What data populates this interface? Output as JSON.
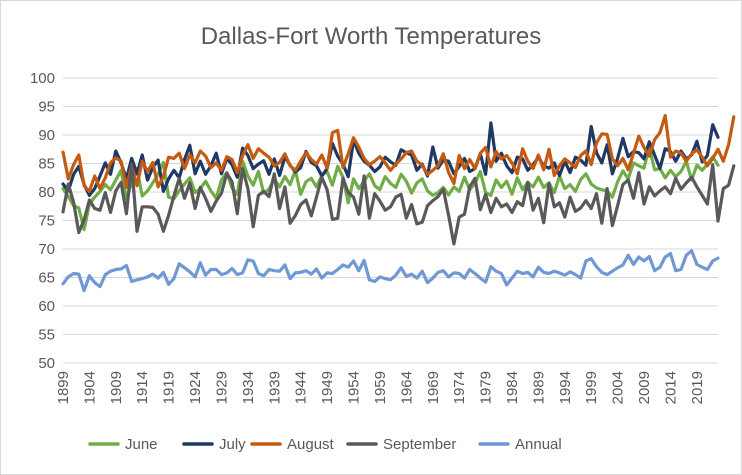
{
  "chart_data": {
    "type": "line",
    "title": "Dallas-Fort Worth Temperatures",
    "xlabel": "",
    "ylabel": "",
    "ylim": [
      50,
      100
    ],
    "yticks": [
      50,
      55,
      60,
      65,
      70,
      75,
      80,
      85,
      90,
      95,
      100
    ],
    "x_start": 1899,
    "x_end": 2023,
    "xtick_labels": [
      1899,
      1904,
      1909,
      1914,
      1919,
      1924,
      1929,
      1934,
      1939,
      1944,
      1949,
      1954,
      1959,
      1964,
      1969,
      1974,
      1979,
      1984,
      1989,
      1994,
      1999,
      2004,
      2009,
      2014,
      2019
    ],
    "grid": "horizontal",
    "legend": "bottom",
    "series": [
      {
        "name": "June",
        "color": "#70ad47",
        "values": [
          80.6,
          79.2,
          77.6,
          77.2,
          73.4,
          77.9,
          79.1,
          80.1,
          81.3,
          80.4,
          82.1,
          83.8,
          78.9,
          81.5,
          84.1,
          79.3,
          80.2,
          81.6,
          83.1,
          85.2,
          79.1,
          78.8,
          80.2,
          81.4,
          82.5,
          79.9,
          80.6,
          81.9,
          80.2,
          78.9,
          82.1,
          83.4,
          80.7,
          79.6,
          85.4,
          82.8,
          81.2,
          83.6,
          79.8,
          80.5,
          82.3,
          80.9,
          82.7,
          81.3,
          83.8,
          79.6,
          81.8,
          82.4,
          80.9,
          82.9,
          83.6,
          81.2,
          84.5,
          82.6,
          78.1,
          82.3,
          80.6,
          81.9,
          83.2,
          81.1,
          80.4,
          82.7,
          81.5,
          80.8,
          83.1,
          81.9,
          79.8,
          81.6,
          82.3,
          80.2,
          79.4,
          79.9,
          80.8,
          79.5,
          80.9,
          80.1,
          82.6,
          80.4,
          81.5,
          83.6,
          79.9,
          79.4,
          82.1,
          80.8,
          81.9,
          79.6,
          82.5,
          80.4,
          81.7,
          80.9,
          82.6,
          80.8,
          81.6,
          79.9,
          82.8,
          80.6,
          81.3,
          80.1,
          82.2,
          83.2,
          81.4,
          80.7,
          80.4,
          80.2,
          79.1,
          81.8,
          83.7,
          82.3,
          85.1,
          84.6,
          84.2,
          87.8,
          83.9,
          84.1,
          82.5,
          83.8,
          82.7,
          83.6,
          85.4,
          82.1,
          84.7,
          83.8,
          84.9,
          86.2,
          84.7
        ]
      },
      {
        "name": "July",
        "color": "#203864",
        "values": [
          81.4,
          80.2,
          83.1,
          84.5,
          81.3,
          79.4,
          80.6,
          82.8,
          85.1,
          83.1,
          87.2,
          85.1,
          82.3,
          85.9,
          83.2,
          86.5,
          82.1,
          84.3,
          85.6,
          80.1,
          82.3,
          83.8,
          82.5,
          85.7,
          88.2,
          83.2,
          85.4,
          83.1,
          84.6,
          86.8,
          83.2,
          85.9,
          84.8,
          82.6,
          87.7,
          86.4,
          84.1,
          84.9,
          85.5,
          83.1,
          85.8,
          82.9,
          86.2,
          84.7,
          83.5,
          84.3,
          87.1,
          85.2,
          84.6,
          82.8,
          84.1,
          88.5,
          86.3,
          84.9,
          82.7,
          89.1,
          86.8,
          85.4,
          84.7,
          83.6,
          84.4,
          86.1,
          85.3,
          84.7,
          87.4,
          86.9,
          86.5,
          83.8,
          84.9,
          82.8,
          87.9,
          84.2,
          85.6,
          85.4,
          83.2,
          84.5,
          85.9,
          83.6,
          84.1,
          86.7,
          83.1,
          92.1,
          85.4,
          86.8,
          84.6,
          83.4,
          86.1,
          85.8,
          83.8,
          84.8,
          86.1,
          84.6,
          84.2,
          85.1,
          82.9,
          85.4,
          83.4,
          86.1,
          85.6,
          84.7,
          91.5,
          86.9,
          85.1,
          88.3,
          83.2,
          85.9,
          89.4,
          86.2,
          87.1,
          86.9,
          85.8,
          88.8,
          86.5,
          84.1,
          87.6,
          87.1,
          85.4,
          87.2,
          85.8,
          86.5,
          88.9,
          85.3,
          86.4,
          91.8,
          89.6
        ]
      },
      {
        "name": "August",
        "color": "#c55a11",
        "values": [
          87.0,
          82.3,
          84.8,
          86.5,
          81.1,
          80.1,
          82.8,
          80.6,
          82.5,
          85.1,
          86.0,
          85.4,
          80.8,
          84.6,
          81.1,
          85.4,
          83.6,
          85.2,
          80.9,
          82.7,
          86.1,
          85.9,
          86.8,
          84.1,
          86.5,
          85.1,
          87.2,
          86.3,
          84.3,
          85.1,
          83.8,
          86.2,
          85.7,
          83.4,
          86.4,
          88.3,
          85.9,
          87.6,
          86.8,
          86.1,
          84.6,
          85.2,
          86.7,
          84.6,
          83.8,
          85.4,
          86.9,
          85.7,
          84.9,
          86.5,
          84.2,
          90.4,
          90.8,
          84.3,
          86.7,
          89.5,
          87.9,
          85.9,
          84.8,
          85.4,
          86.2,
          85.1,
          83.8,
          84.9,
          85.8,
          86.9,
          87.2,
          85.4,
          84.7,
          83.1,
          83.8,
          84.6,
          86.7,
          83.4,
          81.5,
          86.4,
          84.1,
          85.7,
          84.1,
          86.8,
          87.8,
          84.4,
          87.1,
          85.8,
          86.4,
          85.1,
          83.2,
          87.6,
          85.4,
          84.1,
          86.5,
          83.9,
          87.5,
          82.9,
          84.6,
          85.8,
          85.1,
          84.3,
          86.4,
          87.2,
          84.8,
          88.6,
          90.2,
          90.1,
          85.8,
          84.6,
          85.9,
          83.9,
          86.8,
          89.8,
          87.8,
          86.3,
          89.2,
          90.4,
          93.4,
          86.1,
          87.2,
          86.8,
          85.4,
          86.7,
          87.4,
          86.1,
          84.6,
          85.9,
          87.5,
          85.4,
          88.3,
          93.2
        ]
      },
      {
        "name": "September",
        "color": "#595959",
        "values": [
          76.5,
          81.4,
          78.2,
          72.9,
          75.1,
          78.6,
          77.1,
          76.8,
          79.9,
          76.4,
          80.2,
          81.7,
          76.2,
          84.9,
          73.1,
          77.4,
          77.4,
          77.3,
          76.1,
          73.1,
          75.9,
          79.3,
          82.4,
          78.9,
          81.6,
          77.1,
          80.8,
          78.9,
          76.6,
          78.4,
          79.8,
          83.3,
          81.8,
          76.2,
          84.1,
          80.6,
          73.9,
          79.4,
          80.1,
          79.2,
          83.2,
          77.1,
          80.9,
          74.5,
          75.9,
          77.8,
          78.6,
          75.8,
          79.1,
          82.6,
          80.4,
          75.2,
          75.4,
          82.4,
          79.9,
          79.1,
          76.1,
          82.8,
          75.4,
          79.7,
          78.4,
          76.8,
          77.4,
          79.1,
          79.6,
          75.4,
          77.8,
          74.4,
          74.7,
          77.6,
          78.5,
          79.2,
          80.5,
          75.9,
          70.9,
          75.6,
          76.1,
          80.9,
          82.4,
          76.9,
          79.6,
          76.4,
          78.9,
          77.4,
          77.9,
          76.4,
          78.3,
          77.6,
          81.7,
          76.8,
          78.9,
          74.6,
          81.5,
          77.4,
          78.1,
          75.6,
          79.1,
          76.6,
          77.2,
          78.5,
          77.1,
          79.7,
          74.5,
          80.6,
          74.1,
          77.6,
          81.3,
          82.1,
          78.9,
          83.4,
          77.9,
          80.9,
          79.3,
          80.2,
          80.9,
          79.7,
          82.4,
          80.5,
          81.6,
          82.6,
          80.9,
          79.4,
          77.9,
          84.8,
          74.9,
          80.6,
          81.2,
          84.6
        ]
      },
      {
        "name": "Annual",
        "color": "#6f98d4",
        "values": [
          63.9,
          65.1,
          65.7,
          65.6,
          62.7,
          65.3,
          64.1,
          63.4,
          65.5,
          66.1,
          66.4,
          66.5,
          67.1,
          64.3,
          64.6,
          64.8,
          65.1,
          65.6,
          64.9,
          65.9,
          63.8,
          64.8,
          67.4,
          66.7,
          66.0,
          65.1,
          67.6,
          65.4,
          66.4,
          66.4,
          65.5,
          65.8,
          66.6,
          65.5,
          65.8,
          68.1,
          67.9,
          65.7,
          65.3,
          66.4,
          66.2,
          66.1,
          67.2,
          64.8,
          65.8,
          65.9,
          66.2,
          65.6,
          66.5,
          64.9,
          65.8,
          65.7,
          66.4,
          67.2,
          66.8,
          67.9,
          66.2,
          68.0,
          64.6,
          64.3,
          65.1,
          64.8,
          64.6,
          65.4,
          66.7,
          65.2,
          65.6,
          64.9,
          66.1,
          64.1,
          64.9,
          65.9,
          66.2,
          65.1,
          65.8,
          65.7,
          64.9,
          66.4,
          65.7,
          64.9,
          64.2,
          66.9,
          66.1,
          65.7,
          63.7,
          64.9,
          66.1,
          65.7,
          65.9,
          65.1,
          66.8,
          65.9,
          65.7,
          66.1,
          65.8,
          65.4,
          66.0,
          65.5,
          64.9,
          67.9,
          68.3,
          66.9,
          65.9,
          65.5,
          66.1,
          66.7,
          67.2,
          68.9,
          67.3,
          68.6,
          67.9,
          68.7,
          66.2,
          66.8,
          68.6,
          69.2,
          66.2,
          66.4,
          68.9,
          69.7,
          67.3,
          66.8,
          66.4,
          67.9,
          68.4
        ]
      }
    ]
  }
}
